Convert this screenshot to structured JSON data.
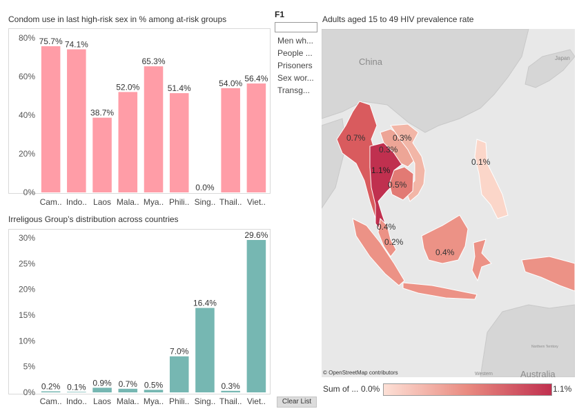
{
  "chart1": {
    "title": "Condom use in last high-risk sex in % among at-risk groups",
    "color": "#ff9da7"
  },
  "chart2": {
    "title": "Irreligous Group’s distribution across countries",
    "color": "#76b7b2"
  },
  "filter": {
    "heading": "F1",
    "items": [
      "Men wh...",
      "People ...",
      "Prisoners",
      "Sex wor...",
      "Transg..."
    ],
    "clear_label": "Clear List"
  },
  "map": {
    "title": "Adults aged 15 to 49 HIV prevalence rate",
    "place_labels": [
      "China",
      "Japan",
      "Northern Territory",
      "Western",
      "Australia"
    ],
    "value_labels": [
      "0.7%",
      "0.3%",
      "0.3%",
      "1.1%",
      "0.5%",
      "0.1%",
      "0.4%",
      "0.2%",
      "0.4%"
    ],
    "credit": "© OpenStreetMap contributors",
    "legend": {
      "title": "Sum of ...",
      "min": "0.0%",
      "max": "1.1%"
    },
    "colors": {
      "low": "#fde0d6",
      "mid": "#e98a80",
      "high": "#c0304f",
      "land": "#d6d6d6",
      "water": "#e8e8e8"
    }
  },
  "chart_data": [
    {
      "type": "bar",
      "title": "Condom use in last high-risk sex in % among at-risk groups",
      "categories": [
        "Cam..",
        "Indo..",
        "Laos",
        "Mala..",
        "Mya..",
        "Phili..",
        "Sing..",
        "Thail..",
        "Viet.."
      ],
      "values": [
        75.7,
        74.1,
        38.7,
        52.0,
        65.3,
        51.4,
        0.0,
        54.0,
        56.4
      ],
      "value_labels": [
        "75.7%",
        "74.1%",
        "38.7%",
        "52.0%",
        "65.3%",
        "51.4%",
        "0.0%",
        "54.0%",
        "56.4%"
      ],
      "yticks": [
        "0%",
        "20%",
        "40%",
        "60%",
        "80%"
      ],
      "ylim": [
        0,
        80
      ],
      "grid": false
    },
    {
      "type": "bar",
      "title": "Irreligous Group’s distribution across countries",
      "categories": [
        "Cam..",
        "Indo..",
        "Laos",
        "Mala..",
        "Mya..",
        "Phili..",
        "Sing..",
        "Thail..",
        "Viet.."
      ],
      "values": [
        0.2,
        0.1,
        0.9,
        0.7,
        0.5,
        7.0,
        16.4,
        0.3,
        29.6
      ],
      "value_labels": [
        "0.2%",
        "0.1%",
        "0.9%",
        "0.7%",
        "0.5%",
        "7.0%",
        "16.4%",
        "0.3%",
        "29.6%"
      ],
      "yticks": [
        "0%",
        "5%",
        "10%",
        "15%",
        "20%",
        "25%",
        "30%"
      ],
      "ylim": [
        0,
        30
      ],
      "grid": false
    }
  ]
}
